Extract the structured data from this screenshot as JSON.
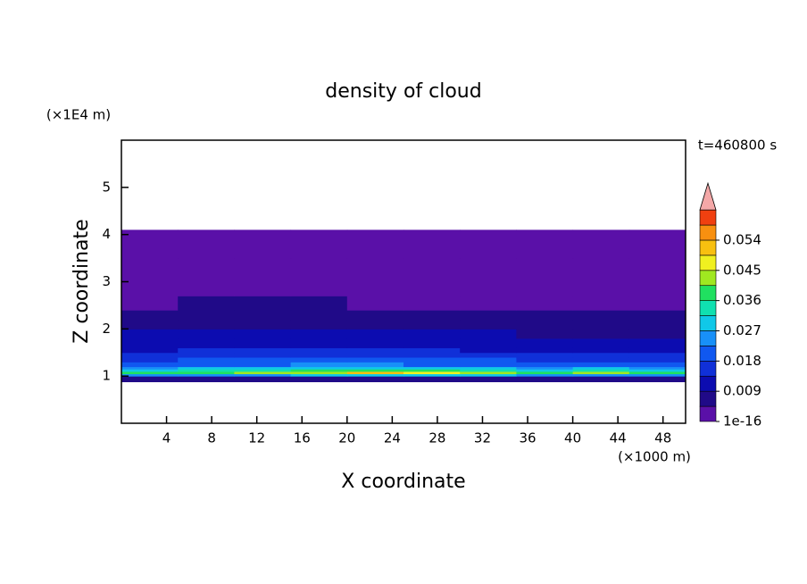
{
  "chart_data": {
    "type": "heatmap",
    "title": "density of cloud",
    "xlabel": "X coordinate",
    "ylabel": "Z coordinate",
    "x_unit": "(×1000 m)",
    "y_unit": "(×1E4 m)",
    "annotation": "t=460800 s",
    "xlim": [
      0,
      50
    ],
    "ylim": [
      0,
      6
    ],
    "xticks": [
      4,
      8,
      12,
      16,
      20,
      24,
      28,
      32,
      36,
      40,
      44,
      48
    ],
    "yticks": [
      1,
      2,
      3,
      4,
      5
    ],
    "x_edges": [
      0,
      5,
      10,
      15,
      20,
      25,
      30,
      35,
      40,
      45,
      50
    ],
    "z_edges": [
      0.88,
      1.0,
      1.05,
      1.1,
      1.15,
      1.2,
      1.3,
      1.4,
      1.5,
      1.6,
      1.8,
      2.0,
      2.2,
      2.4,
      2.7,
      3.0,
      3.5,
      4.1
    ],
    "values": [
      [
        0.006,
        0.006,
        0.006,
        0.006,
        0.006,
        0.006,
        0.006,
        0.006,
        0.006,
        0.006
      ],
      [
        0.024,
        0.026,
        0.025,
        0.028,
        0.03,
        0.029,
        0.027,
        0.025,
        0.026,
        0.024
      ],
      [
        0.038,
        0.04,
        0.041,
        0.044,
        0.05,
        0.047,
        0.043,
        0.04,
        0.042,
        0.039
      ],
      [
        0.03,
        0.033,
        0.032,
        0.036,
        0.04,
        0.038,
        0.034,
        0.031,
        0.033,
        0.03
      ],
      [
        0.026,
        0.027,
        0.028,
        0.03,
        0.031,
        0.03,
        0.028,
        0.026,
        0.027,
        0.025
      ],
      [
        0.02,
        0.021,
        0.022,
        0.023,
        0.024,
        0.022,
        0.021,
        0.019,
        0.02,
        0.019
      ],
      [
        0.017,
        0.018,
        0.019,
        0.02,
        0.02,
        0.019,
        0.018,
        0.016,
        0.017,
        0.016
      ],
      [
        0.015,
        0.016,
        0.016,
        0.017,
        0.017,
        0.016,
        0.015,
        0.014,
        0.015,
        0.014
      ],
      [
        0.013,
        0.014,
        0.014,
        0.015,
        0.015,
        0.014,
        0.013,
        0.012,
        0.012,
        0.012
      ],
      [
        0.011,
        0.012,
        0.012,
        0.012,
        0.012,
        0.011,
        0.011,
        0.01,
        0.01,
        0.01
      ],
      [
        0.009,
        0.01,
        0.01,
        0.01,
        0.01,
        0.009,
        0.009,
        0.008,
        0.008,
        0.008
      ],
      [
        0.007,
        0.008,
        0.008,
        0.008,
        0.008,
        0.007,
        0.007,
        0.006,
        0.006,
        0.006
      ],
      [
        0.005,
        0.006,
        0.006,
        0.006,
        0.006,
        0.005,
        0.005,
        0.005,
        0.005,
        0.005
      ],
      [
        0.004,
        0.005,
        0.005,
        0.005,
        0.004,
        0.004,
        0.004,
        0.004,
        0.004,
        0.004
      ],
      [
        0.003,
        0.003,
        0.003,
        0.003,
        0.003,
        0.003,
        0.003,
        0.003,
        0.003,
        0.003
      ],
      [
        0.002,
        0.002,
        0.002,
        0.002,
        0.002,
        0.002,
        0.002,
        0.002,
        0.002,
        0.002
      ],
      [
        0.001,
        0.001,
        0.001,
        0.001,
        0.001,
        0.001,
        0.001,
        0.001,
        0.001,
        0.001
      ]
    ],
    "colorbar": {
      "levels": [
        1e-16,
        0.0045,
        0.009,
        0.0135,
        0.018,
        0.0225,
        0.027,
        0.0315,
        0.036,
        0.0405,
        0.045,
        0.0495,
        0.054,
        0.0585,
        0.063
      ],
      "colors": [
        "#5a10a8",
        "#200a88",
        "#0c0cb0",
        "#1030d8",
        "#1058f0",
        "#1890f8",
        "#10c8e8",
        "#10e0b0",
        "#20e060",
        "#a0e820",
        "#f0f020",
        "#f8c010",
        "#f89010",
        "#f04010"
      ],
      "extend_color": "#f4a8a8",
      "ticks": [
        1e-16,
        0.009,
        0.018,
        0.027,
        0.036,
        0.045,
        0.054
      ]
    }
  }
}
